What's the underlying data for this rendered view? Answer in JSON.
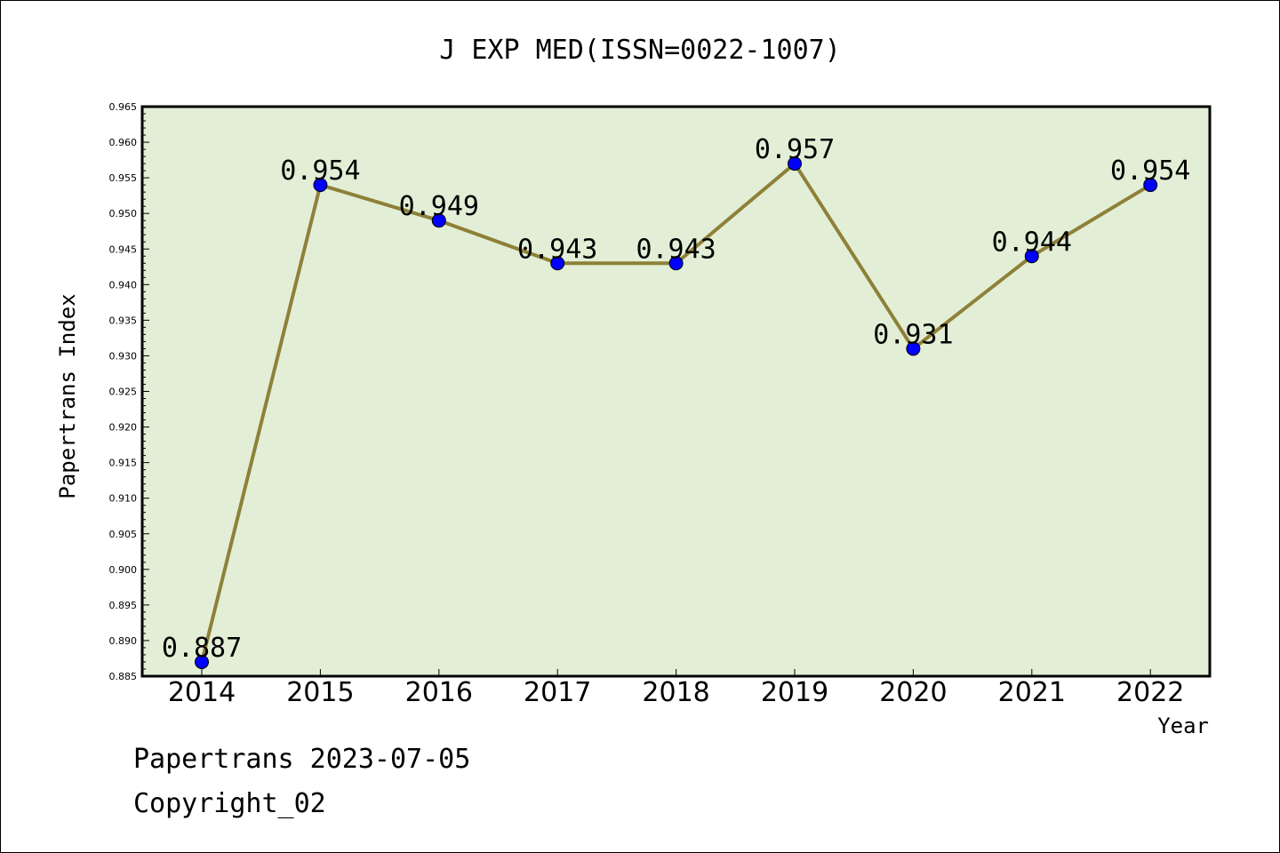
{
  "chart_data": {
    "type": "line",
    "title": "J EXP MED(ISSN=0022-1007)",
    "xlabel": "Year",
    "ylabel": "Papertrans Index",
    "categories": [
      "2014",
      "2015",
      "2016",
      "2017",
      "2018",
      "2019",
      "2020",
      "2021",
      "2022"
    ],
    "values": [
      0.887,
      0.954,
      0.949,
      0.943,
      0.943,
      0.957,
      0.931,
      0.944,
      0.954
    ],
    "value_labels": [
      "0.887",
      "0.954",
      "0.949",
      "0.943",
      "0.943",
      "0.957",
      "0.931",
      "0.944",
      "0.954"
    ],
    "ylim": [
      0.885,
      0.965
    ],
    "yticks": [
      "0.885",
      "0.890",
      "0.895",
      "0.900",
      "0.905",
      "0.910",
      "0.915",
      "0.920",
      "0.925",
      "0.930",
      "0.935",
      "0.940",
      "0.945",
      "0.950",
      "0.955",
      "0.960",
      "0.965"
    ],
    "grid": false,
    "colors": {
      "plot_bg": "#e2efd6",
      "line": "#8e8038",
      "marker": "#0000ff"
    }
  },
  "footer": {
    "line1": "Papertrans 2023-07-05",
    "line2": "Copyright_02"
  }
}
